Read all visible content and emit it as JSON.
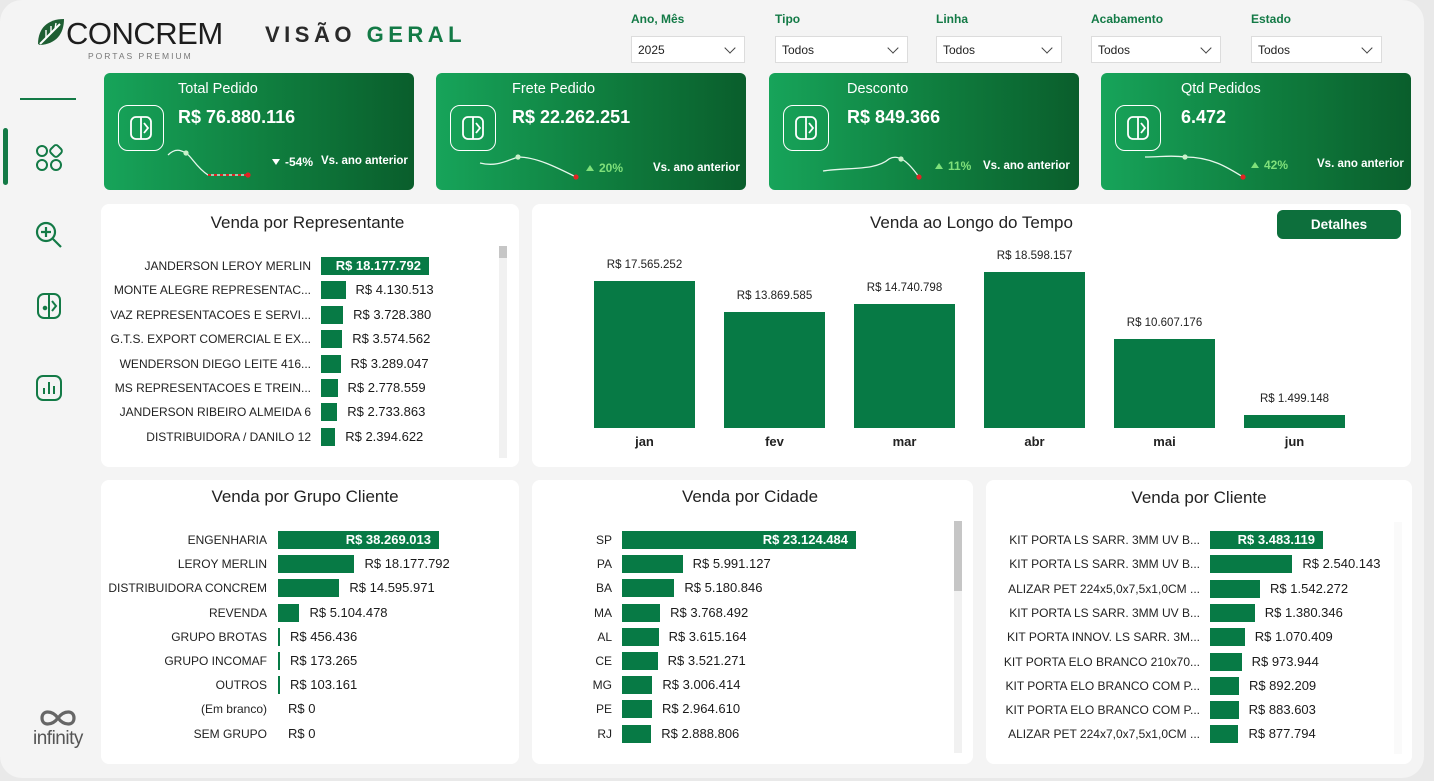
{
  "brand": {
    "name": "CONCREM",
    "tagline": "PORTAS PREMIUM"
  },
  "page_title": {
    "part1": "VISÃO",
    "part2": "GERAL"
  },
  "filters": [
    {
      "label": "Ano, Mês",
      "value": "2025"
    },
    {
      "label": "Tipo",
      "value": "Todos"
    },
    {
      "label": "Linha",
      "value": "Todos"
    },
    {
      "label": "Acabamento",
      "value": "Todos"
    },
    {
      "label": "Estado",
      "value": "Todos"
    }
  ],
  "sidebar": {
    "items": [
      {
        "icon": "grid-icon"
      },
      {
        "icon": "zoom-in-icon"
      },
      {
        "icon": "door-icon"
      },
      {
        "icon": "bar-chart-icon"
      }
    ]
  },
  "kpis": [
    {
      "title": "Total Pedido",
      "value": "R$ 76.880.116",
      "delta": "-54%",
      "trend": "down",
      "vs": "Vs. ano anterior"
    },
    {
      "title": "Frete Pedido",
      "value": "R$ 22.262.251",
      "delta": "20%",
      "trend": "up",
      "vs": "Vs. ano anterior"
    },
    {
      "title": "Desconto",
      "value": "R$ 849.366",
      "delta": "11%",
      "trend": "up",
      "vs": "Vs. ano anterior"
    },
    {
      "title": "Qtd Pedidos",
      "value": "6.472",
      "delta": "42%",
      "trend": "up",
      "vs": "Vs. ano anterior"
    }
  ],
  "colors": {
    "primary": "#077a45",
    "accent_title": "#137a46",
    "spark_end": "#e02424",
    "up": "#7fe07a"
  },
  "representante": {
    "title": "Venda por Representante",
    "rows": [
      {
        "label": "JANDERSON LEROY MERLIN",
        "value": 18177792,
        "text": "R$ 18.177.792"
      },
      {
        "label": "MONTE ALEGRE REPRESENTAC...",
        "value": 4130513,
        "text": "R$ 4.130.513"
      },
      {
        "label": "VAZ REPRESENTACOES E SERVI...",
        "value": 3728380,
        "text": "R$ 3.728.380"
      },
      {
        "label": "G.T.S. EXPORT COMERCIAL E EX...",
        "value": 3574562,
        "text": "R$ 3.574.562"
      },
      {
        "label": "WENDERSON DIEGO LEITE 416...",
        "value": 3289047,
        "text": "R$ 3.289.047"
      },
      {
        "label": "MS REPRESENTACOES E TREIN...",
        "value": 2778559,
        "text": "R$ 2.778.559"
      },
      {
        "label": "JANDERSON RIBEIRO ALMEIDA 6",
        "value": 2733863,
        "text": "R$ 2.733.863"
      },
      {
        "label": "DISTRIBUIDORA / DANILO 12",
        "value": 2394622,
        "text": "R$ 2.394.622"
      }
    ]
  },
  "tempo": {
    "title": "Venda ao Longo do Tempo",
    "button": "Detalhes",
    "chart_data": {
      "type": "bar",
      "categories": [
        "jan",
        "fev",
        "mar",
        "abr",
        "mai",
        "jun"
      ],
      "values": [
        17565252,
        13869585,
        14740798,
        18598157,
        10607176,
        1499148
      ],
      "labels": [
        "R$ 17.565.252",
        "R$ 13.869.585",
        "R$ 14.740.798",
        "R$ 18.598.157",
        "R$ 10.607.176",
        "R$ 1.499.148"
      ],
      "title": "Venda ao Longo do Tempo"
    }
  },
  "grupo": {
    "title": "Venda por Grupo Cliente",
    "rows": [
      {
        "label": "ENGENHARIA",
        "value": 38269013,
        "text": "R$ 38.269.013"
      },
      {
        "label": "LEROY MERLIN",
        "value": 18177792,
        "text": "R$ 18.177.792"
      },
      {
        "label": "DISTRIBUIDORA CONCREM",
        "value": 14595971,
        "text": "R$ 14.595.971"
      },
      {
        "label": "REVENDA",
        "value": 5104478,
        "text": "R$ 5.104.478"
      },
      {
        "label": "GRUPO BROTAS",
        "value": 456436,
        "text": "R$ 456.436"
      },
      {
        "label": "GRUPO INCOMAF",
        "value": 173265,
        "text": "R$ 173.265"
      },
      {
        "label": "OUTROS",
        "value": 103161,
        "text": "R$ 103.161"
      },
      {
        "label": "(Em branco)",
        "value": 0,
        "text": "R$ 0"
      },
      {
        "label": "SEM GRUPO",
        "value": 0,
        "text": "R$ 0"
      }
    ]
  },
  "cidade": {
    "title": "Venda por Cidade",
    "rows": [
      {
        "label": "SP",
        "value": 23124484,
        "text": "R$ 23.124.484"
      },
      {
        "label": "PA",
        "value": 5991127,
        "text": "R$ 5.991.127"
      },
      {
        "label": "BA",
        "value": 5180846,
        "text": "R$ 5.180.846"
      },
      {
        "label": "MA",
        "value": 3768492,
        "text": "R$ 3.768.492"
      },
      {
        "label": "AL",
        "value": 3615164,
        "text": "R$ 3.615.164"
      },
      {
        "label": "CE",
        "value": 3521271,
        "text": "R$ 3.521.271"
      },
      {
        "label": "MG",
        "value": 3006414,
        "text": "R$ 3.006.414"
      },
      {
        "label": "PE",
        "value": 2964610,
        "text": "R$ 2.964.610"
      },
      {
        "label": "RJ",
        "value": 2888806,
        "text": "R$ 2.888.806"
      }
    ]
  },
  "cliente": {
    "title": "Venda por Cliente",
    "rows": [
      {
        "label": "KIT PORTA LS SARR. 3MM UV B...",
        "value": 3483119,
        "text": "R$ 3.483.119"
      },
      {
        "label": "KIT PORTA LS SARR. 3MM UV B...",
        "value": 2540143,
        "text": "R$ 2.540.143"
      },
      {
        "label": "ALIZAR PET 224x5,0x7,5x1,0CM ...",
        "value": 1542272,
        "text": "R$ 1.542.272"
      },
      {
        "label": "KIT PORTA LS SARR. 3MM UV B...",
        "value": 1380346,
        "text": "R$ 1.380.346"
      },
      {
        "label": "KIT PORTA INNOV. LS SARR. 3M...",
        "value": 1070409,
        "text": "R$ 1.070.409"
      },
      {
        "label": "KIT PORTA ELO BRANCO 210x70...",
        "value": 973944,
        "text": "R$ 973.944"
      },
      {
        "label": "KIT PORTA ELO BRANCO COM P...",
        "value": 892209,
        "text": "R$ 892.209"
      },
      {
        "label": "KIT PORTA ELO BRANCO COM P...",
        "value": 883603,
        "text": "R$ 883.603"
      },
      {
        "label": "ALIZAR PET 224x7,0x7,5x1,0CM ...",
        "value": 877794,
        "text": "R$ 877.794"
      }
    ]
  },
  "footer": {
    "logo_text": "infinity"
  }
}
